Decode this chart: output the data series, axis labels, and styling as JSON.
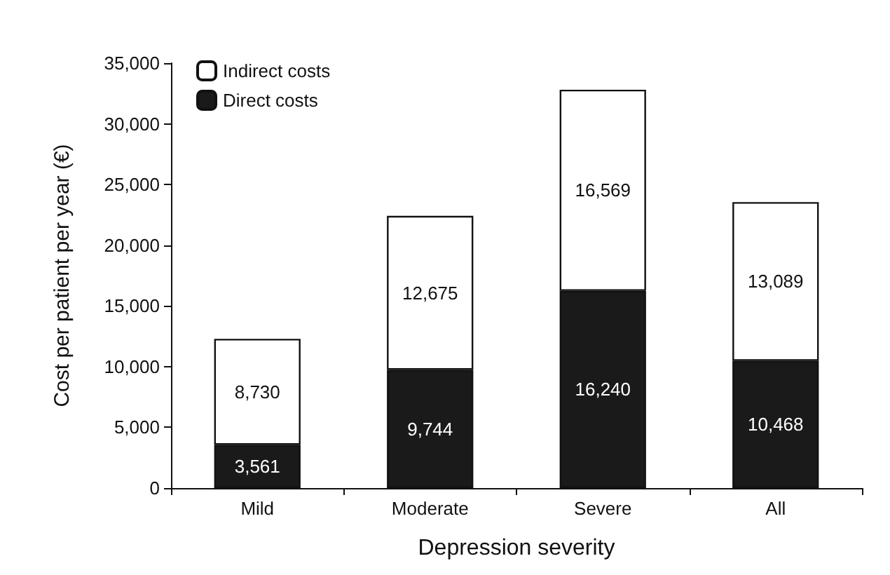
{
  "chart_data": {
    "type": "bar",
    "stacked": true,
    "xlabel": "Depression severity",
    "ylabel": "Cost per patient per year (€)",
    "categories": [
      "Mild",
      "Moderate",
      "Severe",
      "All"
    ],
    "series": [
      {
        "name": "Direct costs",
        "color": "#1a1a1a",
        "values": [
          3561,
          9744,
          16240,
          10468
        ],
        "value_labels": [
          "3,561",
          "9,744",
          "16,240",
          "10,468"
        ]
      },
      {
        "name": "Indirect costs",
        "color": "#ffffff",
        "values": [
          8730,
          12675,
          16569,
          13089
        ],
        "value_labels": [
          "8,730",
          "12,675",
          "16,569",
          "13,089"
        ]
      }
    ],
    "ylim": [
      0,
      35000
    ],
    "yticks": [
      {
        "value": 0,
        "label": "0"
      },
      {
        "value": 5000,
        "label": "5,000"
      },
      {
        "value": 10000,
        "label": "10,000"
      },
      {
        "value": 15000,
        "label": "15,000"
      },
      {
        "value": 20000,
        "label": "20,000"
      },
      {
        "value": 25000,
        "label": "25,000"
      },
      {
        "value": 30000,
        "label": "30,000"
      },
      {
        "value": 35000,
        "label": "35,000"
      }
    ],
    "grid": false,
    "legend": "top left"
  }
}
